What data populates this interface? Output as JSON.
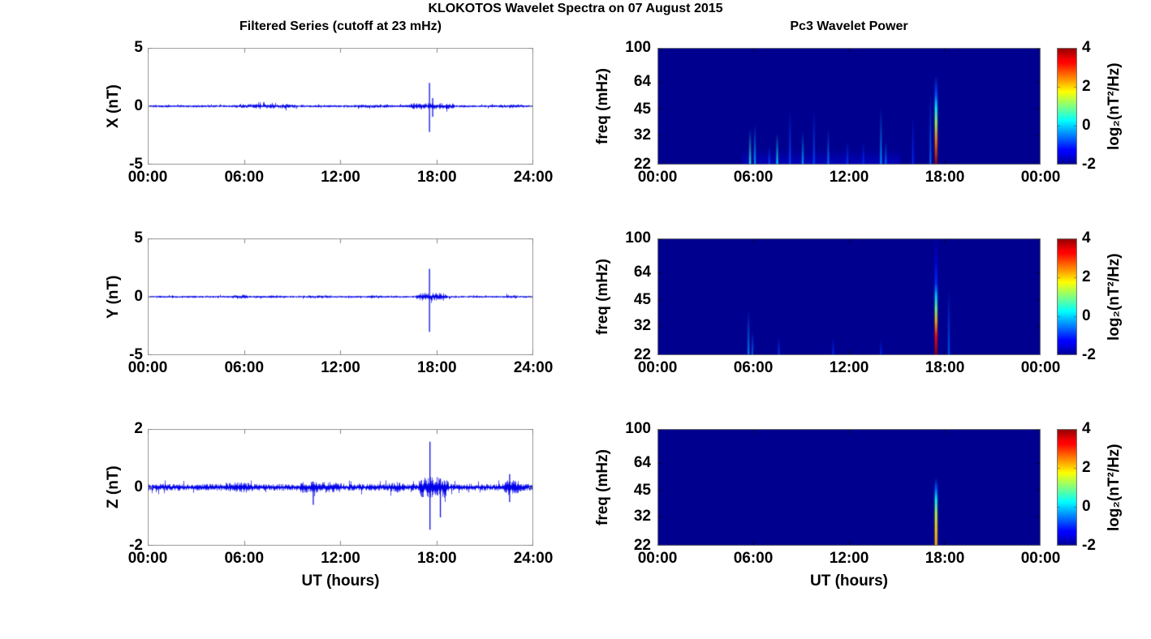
{
  "title": "KLOKOTOS Wavelet Spectra on 07 August 2015",
  "colors": {
    "trace": "#0000e8",
    "spectrogram_background": "#00008f",
    "axis_line": "#999999",
    "text": "#000000",
    "figure_background": "#ffffff"
  },
  "chart_data": {
    "type": "multi-panel",
    "time_axis": {
      "label": "UT (hours)",
      "range_hours": [
        0,
        24
      ]
    },
    "time_series": {
      "type": "line",
      "title": "Filtered Series (cutoff at 23 mHz)",
      "x_tick_labels": [
        "00:00",
        "06:00",
        "12:00",
        "18:00",
        "24:00"
      ],
      "panels": [
        {
          "component": "X",
          "ylabel": "X (nT)",
          "ylim": [
            -5,
            5
          ],
          "yticks": [
            "5",
            "0",
            "-5"
          ],
          "noise_base": 0.085,
          "bursts": [
            [
              5.4,
              9.3,
              0.17
            ],
            [
              12.8,
              15.2,
              0.13
            ],
            [
              16.2,
              19.2,
              0.22
            ],
            [
              21.9,
              23.4,
              0.14
            ]
          ],
          "spikes": [
            [
              17.55,
              2.0,
              -2.2
            ],
            [
              17.75,
              0.7,
              -0.9
            ]
          ]
        },
        {
          "component": "Y",
          "ylabel": "Y (nT)",
          "ylim": [
            -5,
            5
          ],
          "yticks": [
            "5",
            "0",
            "-5"
          ],
          "noise_base": 0.075,
          "bursts": [
            [
              5.2,
              6.3,
              0.16
            ],
            [
              7.4,
              8.6,
              0.11
            ],
            [
              9.9,
              11.6,
              0.11
            ],
            [
              13.6,
              14.6,
              0.12
            ],
            [
              16.6,
              18.7,
              0.28
            ],
            [
              22.2,
              23.1,
              0.13
            ]
          ],
          "spikes": [
            [
              17.55,
              2.4,
              -3.0
            ]
          ]
        },
        {
          "component": "Z",
          "ylabel": "Z (nT)",
          "ylim": [
            -2,
            2
          ],
          "yticks": [
            "2",
            "0",
            "-2"
          ],
          "noise_base": 0.1,
          "bursts": [
            [
              4.7,
              6.6,
              0.15
            ],
            [
              9.4,
              12.1,
              0.16
            ],
            [
              14.8,
              16.1,
              0.15
            ],
            [
              16.8,
              18.8,
              0.3
            ],
            [
              22.1,
              23.3,
              0.22
            ]
          ],
          "spikes": [
            [
              17.58,
              1.56,
              -1.45
            ],
            [
              18.23,
              0.3,
              -1.03
            ],
            [
              10.3,
              0.2,
              -0.6
            ],
            [
              22.55,
              0.45,
              -0.5
            ]
          ]
        }
      ]
    },
    "spectrograms": {
      "type": "heatmap",
      "title": "Pc3 Wavelet Power",
      "ylabel": "freq (mHz)",
      "yticks": [
        100,
        64,
        45,
        32,
        22
      ],
      "freq_range_mhz": [
        22,
        100
      ],
      "freq_scale": "log2",
      "background_power_log2": -2,
      "x_tick_labels": [
        "00:00",
        "06:00",
        "12:00",
        "18:00",
        "00:00"
      ],
      "colorbar": {
        "label": "log₂(nT²/Hz)",
        "ticks": [
          "4",
          "2",
          "0",
          "-2"
        ],
        "range": [
          -2,
          4
        ],
        "colormap": "jet"
      },
      "panels": [
        {
          "component": "X",
          "haze": [
            [
              5.3,
              15.2,
              27,
              -1.2
            ]
          ],
          "events": [
            [
              5.8,
              35,
              0.5
            ],
            [
              6.1,
              37,
              -0.2
            ],
            [
              7.0,
              28,
              -0.8
            ],
            [
              7.5,
              33,
              0.3
            ],
            [
              8.3,
              45,
              -0.8
            ],
            [
              9.1,
              34,
              -0.2
            ],
            [
              9.8,
              45,
              -0.8
            ],
            [
              10.7,
              35,
              -0.5
            ],
            [
              11.9,
              30,
              -0.9
            ],
            [
              12.9,
              30,
              -1.0
            ],
            [
              14.0,
              46,
              -0.3
            ],
            [
              14.3,
              30,
              -0.6
            ],
            [
              16.0,
              42,
              -1.0
            ],
            [
              17.1,
              55,
              -0.6
            ],
            {
              "t": 17.45,
              "profile": [
                [
                  22,
                  4
                ],
                [
                  30,
                  2.5
                ],
                [
                  38,
                  1.2
                ],
                [
                  46,
                  0.2
                ],
                [
                  55,
                  -0.8
                ],
                [
                  70,
                  -2
                ]
              ]
            }
          ]
        },
        {
          "component": "Y",
          "events": [
            [
              5.7,
              40,
              -0.4
            ],
            [
              5.95,
              30,
              -0.6
            ],
            [
              7.6,
              28,
              -0.9
            ],
            [
              11.0,
              28,
              -1.0
            ],
            [
              14.0,
              27,
              -1.0
            ],
            {
              "t": 17.45,
              "profile": [
                [
                  22,
                  4
                ],
                [
                  28,
                  3.2
                ],
                [
                  34,
                  2.2
                ],
                [
                  40,
                  1.0
                ],
                [
                  47,
                  0.0
                ],
                [
                  56,
                  -1.0
                ],
                [
                  75,
                  -1.6
                ],
                [
                  100,
                  -1.95
                ]
              ]
            },
            [
              18.25,
              52,
              -0.7
            ]
          ]
        },
        {
          "component": "Z",
          "events": [
            {
              "t": 17.45,
              "profile": [
                [
                  22,
                  2.2
                ],
                [
                  27,
                  2.0
                ],
                [
                  33,
                  1.4
                ],
                [
                  40,
                  0.3
                ],
                [
                  46,
                  -0.7
                ],
                [
                  53,
                  -2
                ]
              ]
            }
          ]
        }
      ]
    }
  }
}
